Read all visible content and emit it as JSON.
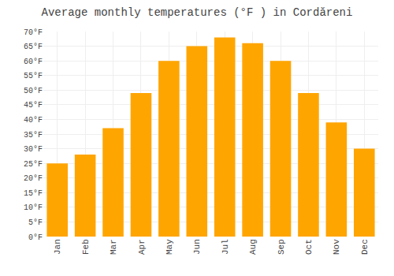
{
  "chart_data": {
    "type": "bar",
    "title": "Average monthly temperatures (°F ) in Cordăreni",
    "categories": [
      "Jan",
      "Feb",
      "Mar",
      "Apr",
      "May",
      "Jun",
      "Jul",
      "Aug",
      "Sep",
      "Oct",
      "Nov",
      "Dec"
    ],
    "values": [
      25,
      28,
      37,
      49,
      60,
      65,
      68,
      66,
      60,
      49,
      39,
      30
    ],
    "color": "#FFA500",
    "ylim": [
      0,
      70
    ],
    "yticks": [
      {
        "value": 0,
        "label": "0°F"
      },
      {
        "value": 5,
        "label": "5°F"
      },
      {
        "value": 10,
        "label": "10°F"
      },
      {
        "value": 15,
        "label": "15°F"
      },
      {
        "value": 20,
        "label": "20°F"
      },
      {
        "value": 25,
        "label": "25°F"
      },
      {
        "value": 30,
        "label": "30°F"
      },
      {
        "value": 35,
        "label": "35°F"
      },
      {
        "value": 40,
        "label": "40°F"
      },
      {
        "value": 45,
        "label": "45°F"
      },
      {
        "value": 50,
        "label": "50°F"
      },
      {
        "value": 55,
        "label": "55°F"
      },
      {
        "value": 60,
        "label": "60°F"
      },
      {
        "value": 65,
        "label": "65°F"
      },
      {
        "value": 70,
        "label": "70°F"
      }
    ],
    "grid": true
  }
}
